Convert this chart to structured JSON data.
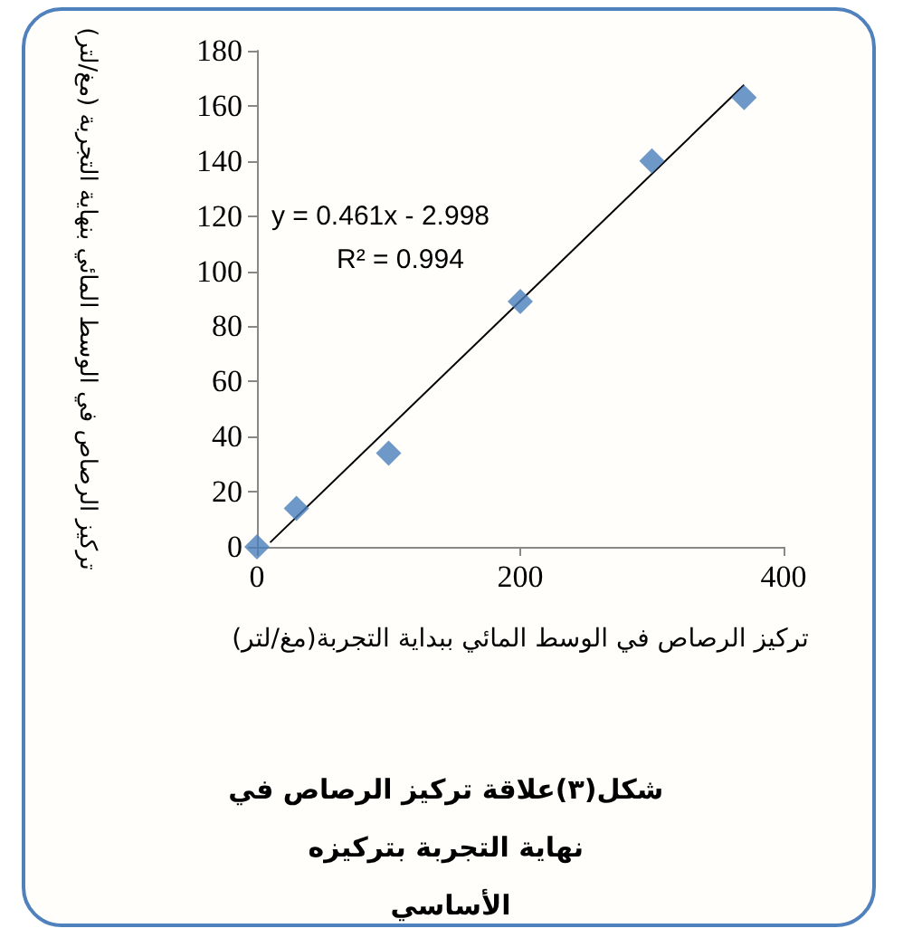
{
  "chart_data": {
    "type": "scatter",
    "xlabel": "تركيز الرصاص في الوسط المائي ببداية التجربة(مغ/لتر)",
    "ylabel": "تركيز الرصاص في الوسط المائي بنهاية التجربة (مغ/لتر)",
    "annotations": [
      "y = 0.461x - 2.998",
      "R² = 0.994",
      "شكل(٣)علاقة تركيز الرصاص في نهاية التجربة بتركيزه الأساسي"
    ],
    "series": [
      {
        "color": "#4a7ebb",
        "marker": "diamond",
        "x": [
          0,
          30,
          100,
          200,
          300,
          370
        ],
        "values": [
          0,
          14,
          34,
          89,
          140,
          163
        ]
      },
      {
        "type": "line",
        "color": "#000000",
        "marker": "none",
        "x": [
          10,
          370
        ],
        "values": [
          1.6,
          167.6
        ]
      }
    ],
    "xlim": [
      0,
      400
    ],
    "xticks": [
      0,
      200,
      400
    ],
    "ylim": [
      0,
      180
    ],
    "yticks": [
      0,
      20,
      40,
      60,
      80,
      100,
      120,
      140,
      160,
      180
    ],
    "grid": false
  }
}
